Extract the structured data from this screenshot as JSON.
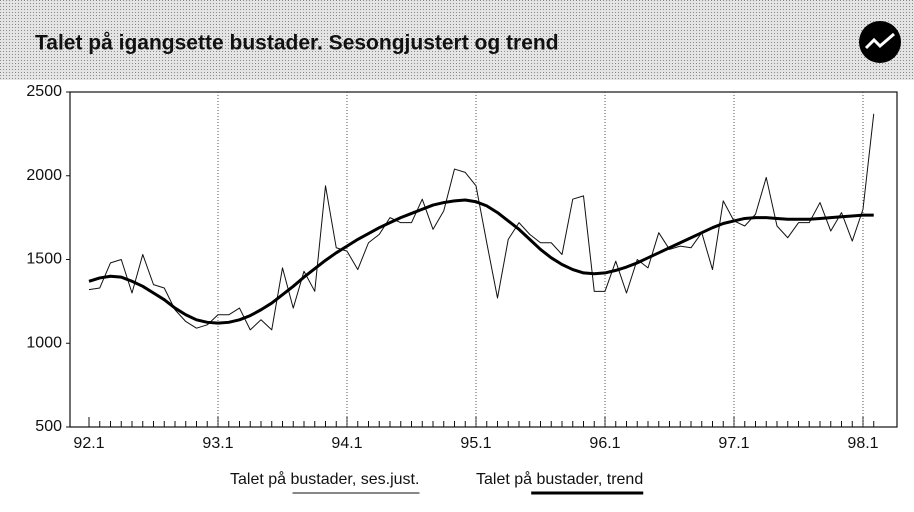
{
  "chart_data": {
    "type": "line",
    "title": "Talet på igangsette bustader. Sesongjustert og trend",
    "categories": [
      "92.1",
      null,
      null,
      null,
      null,
      null,
      null,
      null,
      null,
      null,
      null,
      null,
      "93.1",
      null,
      null,
      null,
      null,
      null,
      null,
      null,
      null,
      null,
      null,
      null,
      "94.1",
      null,
      null,
      null,
      null,
      null,
      null,
      null,
      null,
      null,
      null,
      null,
      "95.1",
      null,
      null,
      null,
      null,
      null,
      null,
      null,
      null,
      null,
      null,
      null,
      "96.1",
      null,
      null,
      null,
      null,
      null,
      null,
      null,
      null,
      null,
      null,
      null,
      "97.1",
      null,
      null,
      null,
      null,
      null,
      null,
      null,
      null,
      null,
      null,
      null,
      "98.1",
      null
    ],
    "series": [
      {
        "name": "Talet på bustader, ses.just.",
        "color": "#111111",
        "width": 1,
        "values": [
          1320,
          1330,
          1480,
          1500,
          1300,
          1530,
          1350,
          1330,
          1200,
          1130,
          1090,
          1110,
          1170,
          1170,
          1210,
          1080,
          1140,
          1080,
          1450,
          1210,
          1430,
          1310,
          1940,
          1570,
          1550,
          1440,
          1600,
          1650,
          1750,
          1720,
          1720,
          1860,
          1680,
          1790,
          2040,
          2020,
          1940,
          1600,
          1270,
          1620,
          1720,
          1650,
          1600,
          1600,
          1530,
          1860,
          1880,
          1310,
          1310,
          1490,
          1300,
          1500,
          1450,
          1660,
          1560,
          1580,
          1570,
          1660,
          1440,
          1850,
          1730,
          1700,
          1770,
          1990,
          1700,
          1630,
          1720,
          1720,
          1840,
          1670,
          1780,
          1610,
          1800,
          2370
        ]
      },
      {
        "name": "Talet på bustader, trend",
        "color": "#000000",
        "width": 3,
        "values": [
          1370,
          1390,
          1400,
          1395,
          1370,
          1340,
          1300,
          1260,
          1210,
          1170,
          1140,
          1125,
          1120,
          1125,
          1140,
          1165,
          1200,
          1240,
          1290,
          1340,
          1395,
          1445,
          1495,
          1540,
          1580,
          1620,
          1655,
          1690,
          1720,
          1750,
          1775,
          1800,
          1825,
          1840,
          1850,
          1855,
          1845,
          1820,
          1780,
          1730,
          1680,
          1620,
          1560,
          1510,
          1470,
          1440,
          1420,
          1415,
          1420,
          1435,
          1455,
          1480,
          1510,
          1540,
          1570,
          1600,
          1630,
          1660,
          1690,
          1715,
          1730,
          1745,
          1750,
          1750,
          1745,
          1740,
          1740,
          1740,
          1745,
          1750,
          1755,
          1760,
          1765,
          1765
        ]
      }
    ],
    "ylim": [
      500,
      2500
    ],
    "yticks": [
      500,
      1000,
      1500,
      2000,
      2500
    ],
    "grid": true
  }
}
